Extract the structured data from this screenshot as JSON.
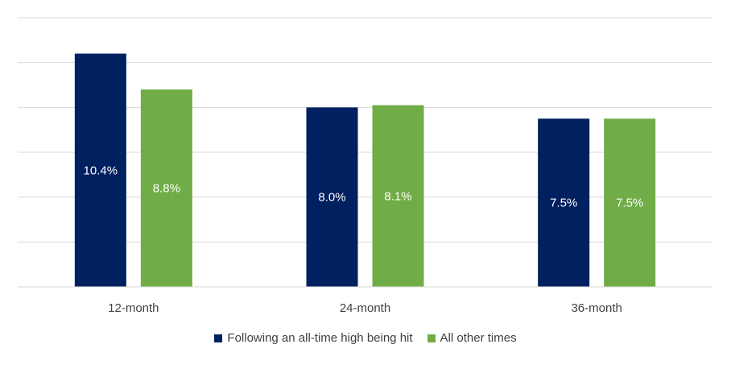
{
  "chart_data": {
    "type": "bar",
    "categories": [
      "12-month",
      "24-month",
      "36-month"
    ],
    "series": [
      {
        "name": "Following an all-time high being hit",
        "values": [
          10.4,
          8.0,
          7.5
        ],
        "labels": [
          "10.4%",
          "8.0%",
          "7.5%"
        ],
        "color": "#002060"
      },
      {
        "name": "All other times",
        "values": [
          8.8,
          8.1,
          7.5
        ],
        "labels": [
          "8.8%",
          "8.1%",
          "7.5%"
        ],
        "color": "#70AD47"
      }
    ],
    "ylim": [
      0,
      12
    ],
    "grid": true,
    "legend_position": "bottom",
    "gridline_color": "#D9D9D9"
  }
}
